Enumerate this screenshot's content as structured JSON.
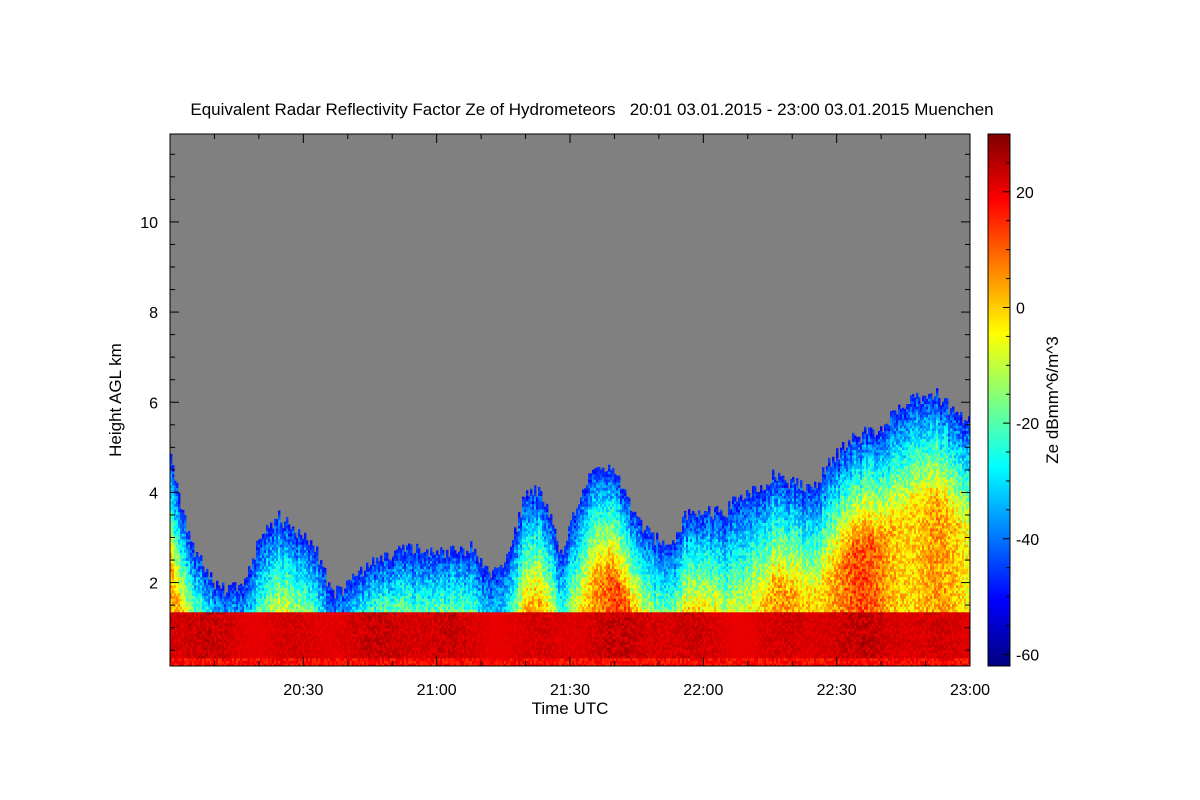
{
  "chart_data": {
    "type": "heatmap",
    "title": "Equivalent Radar Reflectivity Factor Ze of Hydrometeors   20:01 03.01.2015 - 23:00 03.01.2015 Muenchen",
    "xlabel": "Time UTC",
    "ylabel": "Height AGL km",
    "colorbar_label": "Ze dBmm^6/m^3",
    "x_range": [
      "20:01",
      "23:01"
    ],
    "y_range": [
      0.15,
      11.95
    ],
    "x_ticks": [
      "20:30",
      "21:00",
      "21:30",
      "22:00",
      "22:30",
      "23:00"
    ],
    "x_tick_minutes": [
      30,
      60,
      90,
      120,
      150,
      180
    ],
    "y_ticks": [
      2,
      4,
      6,
      8,
      10
    ],
    "colorbar_range": [
      -62,
      30
    ],
    "colorbar_ticks": [
      20,
      0,
      -20,
      -40,
      -60
    ],
    "colorscale": "jet",
    "no_signal_color": "#808080",
    "echo_top_km": {
      "minutes": [
        0,
        4,
        8,
        12,
        16,
        20,
        24,
        28,
        32,
        36,
        40,
        44,
        48,
        52,
        56,
        60,
        64,
        68,
        72,
        76,
        80,
        84,
        88,
        92,
        96,
        100,
        104,
        108,
        112,
        116,
        120,
        124,
        128,
        132,
        136,
        140,
        144,
        148,
        152,
        156,
        160,
        164,
        168,
        172,
        176,
        180
      ],
      "values": [
        4.8,
        3.0,
        2.2,
        1.8,
        2.0,
        2.9,
        3.5,
        3.1,
        2.9,
        1.8,
        1.9,
        2.4,
        2.5,
        2.7,
        2.7,
        2.6,
        2.7,
        2.8,
        2.2,
        2.5,
        4.1,
        3.9,
        2.6,
        3.9,
        4.7,
        4.5,
        3.6,
        3.0,
        2.8,
        3.5,
        3.6,
        3.5,
        3.9,
        4.0,
        4.4,
        4.2,
        4.1,
        4.6,
        5.1,
        5.3,
        5.4,
        5.9,
        6.1,
        6.2,
        5.8,
        5.6
      ]
    },
    "bright_band_km": [
      0.3,
      1.3
    ]
  }
}
